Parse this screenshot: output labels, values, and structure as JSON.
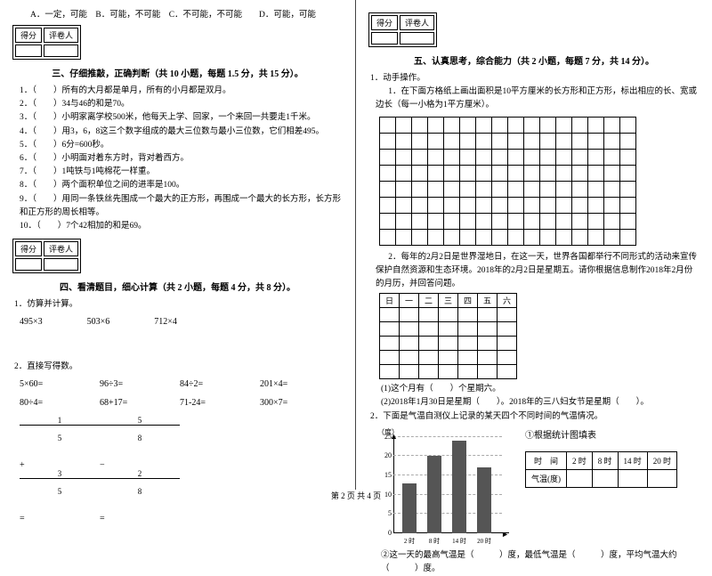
{
  "options": "A．一定，可能　B．可能，不可能　C．不可能，不可能　　D．可能，可能",
  "score_labels": {
    "score": "得分",
    "grader": "评卷人"
  },
  "section3": {
    "title": "三、仔细推敲，正确判断（共 10 小题，每题 1.5 分，共 15 分）。",
    "items": [
      "1．（　　）所有的大月都是单月，所有的小月都是双月。",
      "2．（　　）34与46的和是70。",
      "3．（　　）小明家离学校500米，他每天上学、回家，一个来回一共要走1千米。",
      "4．（　　）用3，6，8这三个数字组成的最大三位数与最小三位数，它们相差495。",
      "5．（　　）6分=600秒。",
      "6．（　　）小明面对着东方时，背对着西方。",
      "7．（　　）1吨铁与1吨棉花一样重。",
      "8．（　　）两个面积单位之间的进率是100。",
      "9．（　　）用同一条铁丝先围成一个最大的正方形，再围成一个最大的长方形，长方形和正方形的周长相等。",
      "10．（　　）7个42相加的和是69。"
    ]
  },
  "section4": {
    "title": "四、看清题目，细心计算（共 2 小题，每题 4 分，共 8 分）。",
    "q1": "1．仿算并计算。",
    "calc": [
      "495×3",
      "503×6",
      "712×4"
    ],
    "q2": "2．直接写得数。",
    "grid": [
      "5×60=",
      "96÷3=",
      "84÷2=",
      "201×4=",
      "80÷4=",
      "68+17=",
      "71-24=",
      "300×7="
    ],
    "frac1": {
      "a_n": "1",
      "a_d": "5",
      "b_n": "3",
      "b_d": "5"
    },
    "frac2": {
      "a_n": "5",
      "a_d": "8",
      "b_n": "2",
      "b_d": "8"
    }
  },
  "section5": {
    "title": "五、认真思考，综合能力（共 2 小题，每题 7 分，共 14 分）。",
    "q1": "1．动手操作。",
    "q1_text": "1．在下面方格纸上画出面积是10平方厘米的长方形和正方形，标出相应的长、宽或边长（每一小格为1平方厘米）。",
    "grid_rows": 8,
    "grid_cols": 16,
    "q2_text": "2．每年的2月2日是世界湿地日，在这一天，世界各国都举行不同形式的活动来宣传保护自然资源和生态环境。2018年的2月2日是星期五。请你根据信息制作2018年2月份的月历，并回答问题。",
    "cal_head": [
      "日",
      "一",
      "二",
      "三",
      "四",
      "五",
      "六"
    ],
    "cal_rows": 5,
    "q2_sub1": "(1)这个月有（　　）个星期六。",
    "q2_sub2": "(2)2018年1月30日是星期（　　）。2018年的三八妇女节是星期（　　）。",
    "q3_text": "2．下面是气温自测仪上记录的某天四个不同时间的气温情况。",
    "chart": {
      "ylabel": "（度）",
      "ticks": [
        0,
        5,
        10,
        15,
        20,
        25
      ],
      "xlabels": [
        "2 时",
        "8 时",
        "14 时",
        "20 时"
      ],
      "values": [
        13,
        20,
        24,
        17
      ],
      "ymax": 25,
      "title": "①根据统计图填表",
      "table_head": [
        "时　间",
        "2 时",
        "8 时",
        "14 时",
        "20 时"
      ],
      "table_row": "气温(度)",
      "footer": "②这一天的最高气温是（　　　）度，最低气温是（　　　）度，平均气温大约（　　　）度。"
    }
  },
  "footer": "第 2 页 共 4 页"
}
